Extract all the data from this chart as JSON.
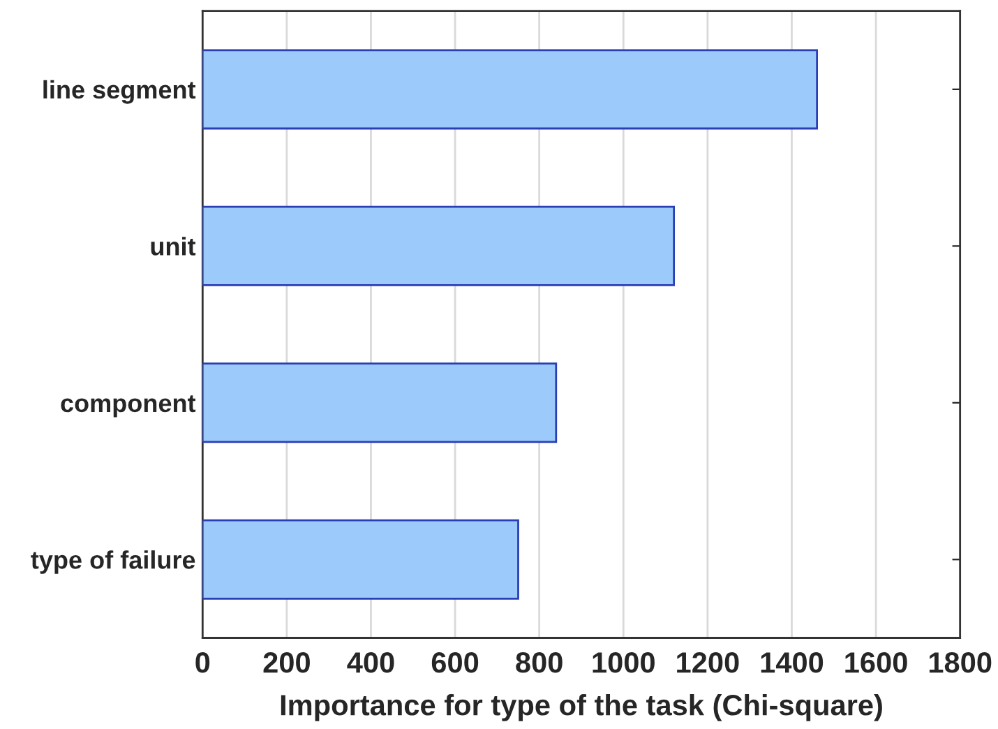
{
  "chart_data": {
    "type": "bar",
    "orientation": "horizontal",
    "xlabel": "Importance for type of the task (Chi-square)",
    "categories": [
      "line segment",
      "unit",
      "component",
      "type of failure"
    ],
    "values": [
      1460,
      1120,
      840,
      750
    ],
    "color": "#9ccbfb",
    "xlim": [
      0,
      1800
    ],
    "xticks": [
      0,
      200,
      400,
      600,
      800,
      1000,
      1200,
      1400,
      1600,
      1800
    ],
    "grid": "x"
  }
}
